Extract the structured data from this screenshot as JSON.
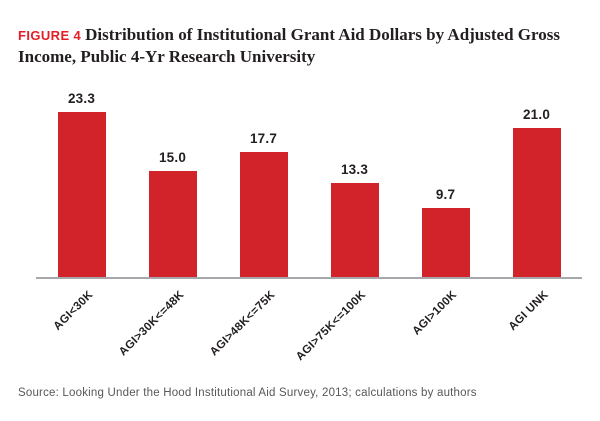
{
  "header": {
    "figure_label": "FIGURE 4",
    "title": "Distribution of Institutional Grant Aid Dollars by Adjusted Gross Income, Public 4-Yr Research University"
  },
  "footer": {
    "source": "Source: Looking Under the Hood Institutional Aid Survey, 2013; calculations by authors"
  },
  "colors": {
    "bar": "#d2232a",
    "figure_label": "#e31e26",
    "axis_line": "#a6a8ab",
    "text": "#231f20",
    "source_text": "#57585a"
  },
  "chart_data": {
    "type": "bar",
    "title": "Distribution of Institutional Grant Aid Dollars by Adjusted Gross Income, Public 4-Yr Research University",
    "categories": [
      "AGI<30K",
      "AGI>30K<=48K",
      "AGI>48K<=75K",
      "AGI>75K<=100K",
      "AGI>100K",
      "AGI UNK"
    ],
    "values": [
      23.3,
      15.0,
      17.7,
      13.3,
      9.7,
      21.0
    ],
    "data_labels": [
      "23.3",
      "15.0",
      "17.7",
      "13.3",
      "9.7",
      "21.0"
    ],
    "xlabel": "",
    "ylabel": "",
    "ylim": [
      0,
      25
    ],
    "grid": false,
    "legend": false,
    "bar_color": "#d2232a",
    "x_tick_rotation_deg": 45
  }
}
